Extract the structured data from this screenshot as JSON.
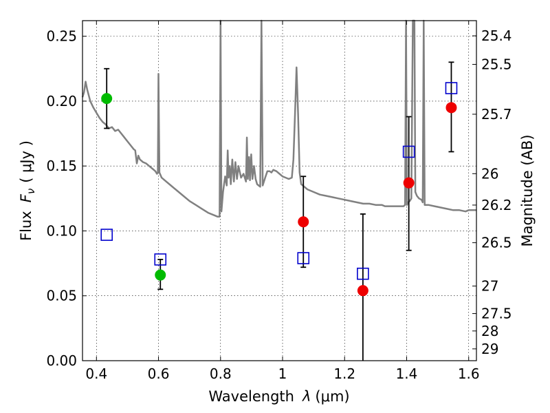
{
  "chart_data": {
    "type": "scatter",
    "xlabel": "Wavelength",
    "xlabel_symbol": "λ",
    "xlabel_unit": "(μm)",
    "ylabel": "Flux",
    "ylabel_symbol": "F",
    "ylabel_subscript": "ν",
    "ylabel_unit": "( μJy )",
    "y2label": "Magnitude (AB)",
    "xlim": [
      0.355,
      1.625
    ],
    "ylim": [
      0.0,
      0.262
    ],
    "xticks": [
      0.4,
      0.6,
      0.8,
      1.0,
      1.2,
      1.4,
      1.6
    ],
    "xtick_labels": [
      "0.4",
      "0.6",
      "0.8",
      "1",
      "1.2",
      "1.4",
      "1.6"
    ],
    "yticks": [
      0.0,
      0.05,
      0.1,
      0.15,
      0.2,
      0.25
    ],
    "ytick_labels": [
      "0.00",
      "0.05",
      "0.10",
      "0.15",
      "0.20",
      "0.25"
    ],
    "y2ticks": [
      {
        "label": "25.4",
        "flux": 0.2503
      },
      {
        "label": "25.5",
        "flux": 0.2283
      },
      {
        "label": "25.7",
        "flux": 0.1899
      },
      {
        "label": "26",
        "flux": 0.1441
      },
      {
        "label": "26.2",
        "flux": 0.1199
      },
      {
        "label": "26.5",
        "flux": 0.0909
      },
      {
        "label": "27",
        "flux": 0.0575
      },
      {
        "label": "27.5",
        "flux": 0.0363
      },
      {
        "label": "28",
        "flux": 0.0229
      },
      {
        "label": "29",
        "flux": 0.0091
      }
    ],
    "grid": true,
    "colors": {
      "spectrum": "#808080",
      "green": "#00bb00",
      "red": "#ee0000",
      "blue": "#0000cc",
      "errorbar": "#000000"
    },
    "series": [
      {
        "kind": "spectrum",
        "points": [
          [
            0.355,
            0.203
          ],
          [
            0.36,
            0.207
          ],
          [
            0.365,
            0.215
          ],
          [
            0.37,
            0.209
          ],
          [
            0.38,
            0.2
          ],
          [
            0.39,
            0.195
          ],
          [
            0.4,
            0.191
          ],
          [
            0.41,
            0.187
          ],
          [
            0.42,
            0.184
          ],
          [
            0.43,
            0.182
          ],
          [
            0.44,
            0.179
          ],
          [
            0.45,
            0.18
          ],
          [
            0.46,
            0.177
          ],
          [
            0.47,
            0.178
          ],
          [
            0.48,
            0.175
          ],
          [
            0.49,
            0.172
          ],
          [
            0.5,
            0.169
          ],
          [
            0.51,
            0.166
          ],
          [
            0.52,
            0.163
          ],
          [
            0.525,
            0.162
          ],
          [
            0.53,
            0.152
          ],
          [
            0.535,
            0.158
          ],
          [
            0.54,
            0.155
          ],
          [
            0.55,
            0.153
          ],
          [
            0.56,
            0.152
          ],
          [
            0.57,
            0.15
          ],
          [
            0.58,
            0.148
          ],
          [
            0.59,
            0.146
          ],
          [
            0.595,
            0.144
          ],
          [
            0.598,
            0.145
          ],
          [
            0.6,
            0.221
          ],
          [
            0.603,
            0.145
          ],
          [
            0.61,
            0.141
          ],
          [
            0.62,
            0.139
          ],
          [
            0.64,
            0.135
          ],
          [
            0.66,
            0.131
          ],
          [
            0.68,
            0.127
          ],
          [
            0.7,
            0.123
          ],
          [
            0.72,
            0.12
          ],
          [
            0.74,
            0.117
          ],
          [
            0.76,
            0.114
          ],
          [
            0.78,
            0.112
          ],
          [
            0.79,
            0.111
          ],
          [
            0.797,
            0.111
          ],
          [
            0.8,
            0.262
          ],
          [
            0.803,
            0.115
          ],
          [
            0.808,
            0.13
          ],
          [
            0.815,
            0.142
          ],
          [
            0.82,
            0.135
          ],
          [
            0.823,
            0.162
          ],
          [
            0.826,
            0.141
          ],
          [
            0.83,
            0.15
          ],
          [
            0.833,
            0.136
          ],
          [
            0.838,
            0.155
          ],
          [
            0.843,
            0.138
          ],
          [
            0.848,
            0.153
          ],
          [
            0.853,
            0.14
          ],
          [
            0.858,
            0.15
          ],
          [
            0.866,
            0.141
          ],
          [
            0.874,
            0.144
          ],
          [
            0.882,
            0.138
          ],
          [
            0.885,
            0.172
          ],
          [
            0.888,
            0.14
          ],
          [
            0.892,
            0.157
          ],
          [
            0.895,
            0.139
          ],
          [
            0.899,
            0.159
          ],
          [
            0.903,
            0.14
          ],
          [
            0.908,
            0.15
          ],
          [
            0.913,
            0.14
          ],
          [
            0.918,
            0.136
          ],
          [
            0.923,
            0.135
          ],
          [
            0.928,
            0.134
          ],
          [
            0.932,
            0.262
          ],
          [
            0.936,
            0.135
          ],
          [
            0.944,
            0.141
          ],
          [
            0.951,
            0.146
          ],
          [
            0.958,
            0.146
          ],
          [
            0.964,
            0.145
          ],
          [
            0.97,
            0.147
          ],
          [
            0.98,
            0.146
          ],
          [
            0.99,
            0.144
          ],
          [
            1.0,
            0.142
          ],
          [
            1.01,
            0.141
          ],
          [
            1.02,
            0.14
          ],
          [
            1.03,
            0.141
          ],
          [
            1.035,
            0.155
          ],
          [
            1.04,
            0.19
          ],
          [
            1.045,
            0.226
          ],
          [
            1.05,
            0.19
          ],
          [
            1.055,
            0.145
          ],
          [
            1.06,
            0.136
          ],
          [
            1.08,
            0.132
          ],
          [
            1.1,
            0.13
          ],
          [
            1.12,
            0.128
          ],
          [
            1.14,
            0.127
          ],
          [
            1.16,
            0.126
          ],
          [
            1.18,
            0.125
          ],
          [
            1.2,
            0.124
          ],
          [
            1.22,
            0.123
          ],
          [
            1.24,
            0.122
          ],
          [
            1.26,
            0.121
          ],
          [
            1.28,
            0.121
          ],
          [
            1.3,
            0.12
          ],
          [
            1.32,
            0.12
          ],
          [
            1.33,
            0.119
          ],
          [
            1.34,
            0.119
          ],
          [
            1.35,
            0.119
          ],
          [
            1.36,
            0.119
          ],
          [
            1.37,
            0.119
          ],
          [
            1.38,
            0.119
          ],
          [
            1.39,
            0.119
          ],
          [
            1.395,
            0.12
          ],
          [
            1.398,
            0.262
          ],
          [
            1.401,
            0.12
          ],
          [
            1.405,
            0.122
          ],
          [
            1.41,
            0.123
          ],
          [
            1.415,
            0.125
          ],
          [
            1.42,
            0.262
          ],
          [
            1.425,
            0.262
          ],
          [
            1.428,
            0.13
          ],
          [
            1.433,
            0.127
          ],
          [
            1.44,
            0.125
          ],
          [
            1.448,
            0.124
          ],
          [
            1.452,
            0.122
          ],
          [
            1.455,
            0.262
          ],
          [
            1.458,
            0.12
          ],
          [
            1.47,
            0.12
          ],
          [
            1.49,
            0.119
          ],
          [
            1.51,
            0.118
          ],
          [
            1.53,
            0.117
          ],
          [
            1.55,
            0.116
          ],
          [
            1.57,
            0.116
          ],
          [
            1.59,
            0.115
          ],
          [
            1.6,
            0.116
          ],
          [
            1.625,
            0.116
          ]
        ]
      },
      {
        "kind": "green",
        "points": [
          {
            "x": 0.433,
            "y": 0.202,
            "lo": 0.179,
            "hi": 0.225
          },
          {
            "x": 0.606,
            "y": 0.066,
            "lo": 0.055,
            "hi": 0.078
          }
        ]
      },
      {
        "kind": "red",
        "points": [
          {
            "x": 1.067,
            "y": 0.107,
            "lo": 0.072,
            "hi": 0.142
          },
          {
            "x": 1.259,
            "y": 0.054,
            "lo": 0.0,
            "hi": 0.113
          },
          {
            "x": 1.407,
            "y": 0.137,
            "lo": 0.085,
            "hi": 0.188
          },
          {
            "x": 1.544,
            "y": 0.195,
            "lo": 0.161,
            "hi": 0.23
          }
        ]
      },
      {
        "kind": "blue",
        "points": [
          {
            "x": 0.433,
            "y": 0.097
          },
          {
            "x": 0.606,
            "y": 0.078
          },
          {
            "x": 1.067,
            "y": 0.079
          },
          {
            "x": 1.259,
            "y": 0.067
          },
          {
            "x": 1.407,
            "y": 0.161
          },
          {
            "x": 1.544,
            "y": 0.21
          }
        ]
      }
    ]
  }
}
